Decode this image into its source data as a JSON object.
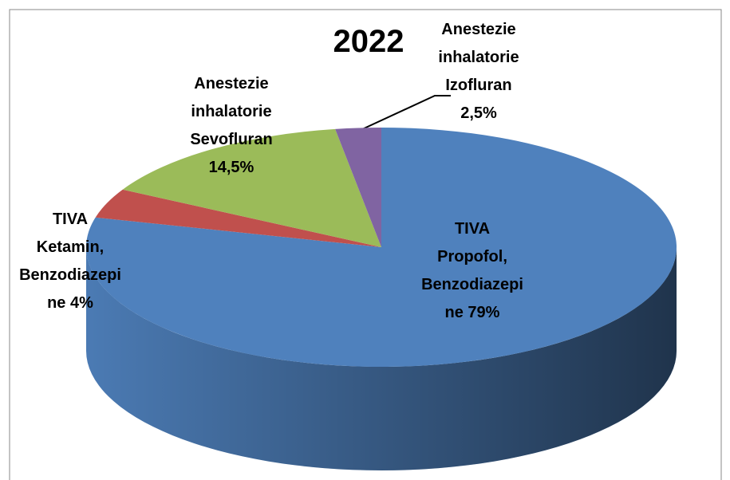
{
  "chart_data": {
    "type": "pie",
    "title": "2022",
    "categories": [
      "TIVA\nPropofol,\nBenzodiazepi\nne",
      "TIVA\nKetamin,\nBenzodiazepi\nne",
      "Anestezie\ninhalatorie\nSevofluran",
      "Anestezie\ninhalatorie\nIzofluran"
    ],
    "values": [
      79,
      4,
      14.5,
      2.5
    ],
    "value_labels": [
      "79%",
      "4%",
      "14,5%",
      "2,5%"
    ],
    "colors": [
      "#4f81bd",
      "#c0504d",
      "#9bbb59",
      "#8064a2"
    ]
  }
}
